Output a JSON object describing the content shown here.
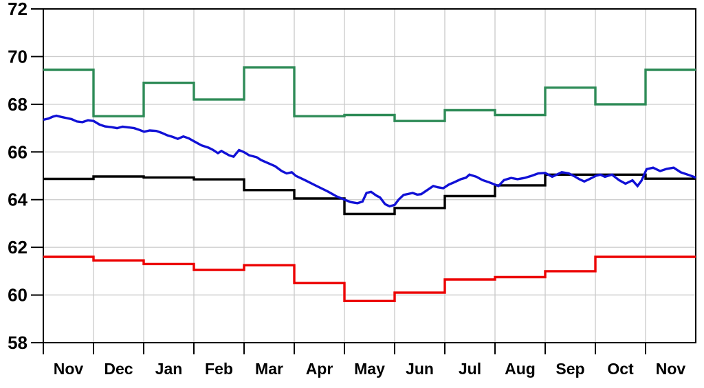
{
  "chart_data": {
    "type": "line",
    "title": "",
    "xlabel": "",
    "ylabel": "",
    "grid": true,
    "legend": "none",
    "x_axis": {
      "unit": "month",
      "months_shown": 13,
      "month_labels": [
        "Nov",
        "Dec",
        "Jan",
        "Feb",
        "Mar",
        "Apr",
        "May",
        "Jun",
        "Jul",
        "Aug",
        "Sep",
        "Oct",
        "Nov"
      ]
    },
    "y_axis": {
      "min": 58,
      "max": 72,
      "tick_step": 2,
      "tick_labels": [
        "58",
        "60",
        "62",
        "64",
        "66",
        "68",
        "70",
        "72"
      ]
    },
    "colors": {
      "upper_step": "#2e8b57",
      "middle_step": "#000000",
      "lower_step": "#ec0000",
      "daily_line": "#1111d6",
      "gridline": "#c9c9c9",
      "frame": "#000000"
    },
    "series": [
      {
        "name": "upper-monthly-step",
        "type": "step",
        "color_key": "upper_step",
        "monthly_values": [
          69.45,
          67.5,
          68.9,
          68.2,
          69.55,
          67.5,
          67.55,
          67.3,
          67.75,
          67.55,
          68.7,
          68.0,
          69.45
        ]
      },
      {
        "name": "middle-monthly-step",
        "type": "step",
        "color_key": "middle_step",
        "monthly_values": [
          64.87,
          64.97,
          64.93,
          64.85,
          64.4,
          64.05,
          63.4,
          63.65,
          64.15,
          64.6,
          65.05,
          65.05,
          64.88
        ]
      },
      {
        "name": "lower-monthly-step",
        "type": "step",
        "color_key": "lower_step",
        "monthly_values": [
          61.6,
          61.45,
          61.3,
          61.05,
          61.25,
          60.5,
          59.75,
          60.1,
          60.65,
          60.75,
          61.0,
          61.6,
          61.6
        ]
      },
      {
        "name": "daily-line",
        "type": "line",
        "color_key": "daily_line",
        "points": [
          [
            0.0,
            67.35
          ],
          [
            0.1,
            67.4
          ],
          [
            0.19,
            67.48
          ],
          [
            0.26,
            67.52
          ],
          [
            0.36,
            67.47
          ],
          [
            0.47,
            67.42
          ],
          [
            0.56,
            67.38
          ],
          [
            0.67,
            67.28
          ],
          [
            0.78,
            67.25
          ],
          [
            0.89,
            67.33
          ],
          [
            1.0,
            67.3
          ],
          [
            1.12,
            67.15
          ],
          [
            1.23,
            67.07
          ],
          [
            1.36,
            67.04
          ],
          [
            1.47,
            67.0
          ],
          [
            1.58,
            67.06
          ],
          [
            1.7,
            67.03
          ],
          [
            1.81,
            67.0
          ],
          [
            1.92,
            66.92
          ],
          [
            2.01,
            66.85
          ],
          [
            2.12,
            66.9
          ],
          [
            2.25,
            66.88
          ],
          [
            2.36,
            66.8
          ],
          [
            2.47,
            66.7
          ],
          [
            2.58,
            66.63
          ],
          [
            2.68,
            66.55
          ],
          [
            2.79,
            66.65
          ],
          [
            2.9,
            66.57
          ],
          [
            3.01,
            66.44
          ],
          [
            3.15,
            66.28
          ],
          [
            3.29,
            66.18
          ],
          [
            3.38,
            66.09
          ],
          [
            3.48,
            65.95
          ],
          [
            3.55,
            66.04
          ],
          [
            3.7,
            65.86
          ],
          [
            3.79,
            65.8
          ],
          [
            3.9,
            66.08
          ],
          [
            4.0,
            65.99
          ],
          [
            4.1,
            65.86
          ],
          [
            4.25,
            65.78
          ],
          [
            4.34,
            65.66
          ],
          [
            4.48,
            65.53
          ],
          [
            4.62,
            65.4
          ],
          [
            4.75,
            65.2
          ],
          [
            4.85,
            65.1
          ],
          [
            4.95,
            65.15
          ],
          [
            5.03,
            65.0
          ],
          [
            5.21,
            64.82
          ],
          [
            5.44,
            64.58
          ],
          [
            5.67,
            64.34
          ],
          [
            5.85,
            64.13
          ],
          [
            6.0,
            64.0
          ],
          [
            6.12,
            63.9
          ],
          [
            6.26,
            63.85
          ],
          [
            6.36,
            63.92
          ],
          [
            6.44,
            64.28
          ],
          [
            6.53,
            64.33
          ],
          [
            6.63,
            64.18
          ],
          [
            6.71,
            64.09
          ],
          [
            6.81,
            63.81
          ],
          [
            6.9,
            63.72
          ],
          [
            7.0,
            63.78
          ],
          [
            7.08,
            64.0
          ],
          [
            7.18,
            64.2
          ],
          [
            7.36,
            64.28
          ],
          [
            7.45,
            64.21
          ],
          [
            7.53,
            64.23
          ],
          [
            7.67,
            64.43
          ],
          [
            7.77,
            64.57
          ],
          [
            7.86,
            64.52
          ],
          [
            7.97,
            64.48
          ],
          [
            8.08,
            64.63
          ],
          [
            8.18,
            64.72
          ],
          [
            8.32,
            64.86
          ],
          [
            8.42,
            64.92
          ],
          [
            8.49,
            65.05
          ],
          [
            8.63,
            64.96
          ],
          [
            8.75,
            64.82
          ],
          [
            8.89,
            64.72
          ],
          [
            9.0,
            64.63
          ],
          [
            9.07,
            64.57
          ],
          [
            9.18,
            64.82
          ],
          [
            9.32,
            64.91
          ],
          [
            9.45,
            64.86
          ],
          [
            9.59,
            64.91
          ],
          [
            9.73,
            65.0
          ],
          [
            9.86,
            65.1
          ],
          [
            10.0,
            65.12
          ],
          [
            10.14,
            64.96
          ],
          [
            10.23,
            65.05
          ],
          [
            10.33,
            65.15
          ],
          [
            10.47,
            65.1
          ],
          [
            10.6,
            64.96
          ],
          [
            10.68,
            64.86
          ],
          [
            10.78,
            64.76
          ],
          [
            10.88,
            64.86
          ],
          [
            11.01,
            65.0
          ],
          [
            11.1,
            65.05
          ],
          [
            11.19,
            64.96
          ],
          [
            11.33,
            65.05
          ],
          [
            11.47,
            64.82
          ],
          [
            11.6,
            64.67
          ],
          [
            11.74,
            64.81
          ],
          [
            11.84,
            64.57
          ],
          [
            11.92,
            64.8
          ],
          [
            12.02,
            65.28
          ],
          [
            12.15,
            65.34
          ],
          [
            12.29,
            65.2
          ],
          [
            12.42,
            65.29
          ],
          [
            12.56,
            65.34
          ],
          [
            12.7,
            65.15
          ],
          [
            12.84,
            65.05
          ],
          [
            12.97,
            64.95
          ],
          [
            13.0,
            64.92
          ]
        ]
      }
    ]
  }
}
